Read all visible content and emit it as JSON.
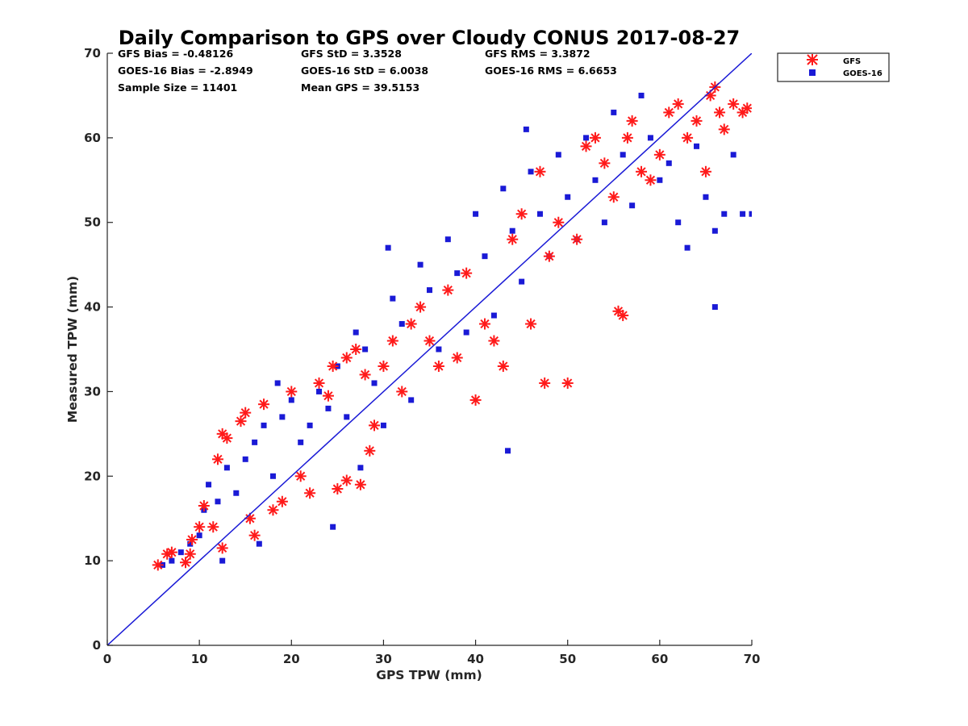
{
  "chart_data": {
    "type": "scatter",
    "title": "Daily Comparison to GPS over Cloudy CONUS 2017-08-27",
    "xlabel": "GPS TPW (mm)",
    "ylabel": "Measured TPW (mm)",
    "xlim": [
      0,
      70
    ],
    "ylim": [
      0,
      70
    ],
    "x_ticks": [
      0,
      10,
      20,
      30,
      40,
      50,
      60,
      70
    ],
    "y_ticks": [
      0,
      10,
      20,
      30,
      40,
      50,
      60,
      70
    ],
    "grid": false,
    "legend_position": "outside-top-right",
    "stats": [
      [
        "GFS Bias = -0.48126",
        "GFS StD = 3.3528",
        "GFS RMS = 3.3872"
      ],
      [
        "GOES-16 Bias = -2.8949",
        "GOES-16 StD = 6.0038",
        "GOES-16 RMS = 6.6653"
      ],
      [
        "Sample Size = 11401",
        "Mean GPS = 39.5153",
        ""
      ]
    ],
    "reference_line": {
      "x": [
        0,
        70
      ],
      "y": [
        0,
        70
      ],
      "color": "#1a1ad6"
    },
    "series": [
      {
        "name": "GFS",
        "marker": "asterisk",
        "color": "#ff1a1a",
        "points": [
          [
            5.5,
            9.5
          ],
          [
            6.5,
            10.8
          ],
          [
            7,
            11
          ],
          [
            8.5,
            9.8
          ],
          [
            9,
            10.8
          ],
          [
            9.2,
            12.5
          ],
          [
            10,
            14
          ],
          [
            10.5,
            16.5
          ],
          [
            11.5,
            14
          ],
          [
            12,
            22
          ],
          [
            12.5,
            25
          ],
          [
            12.5,
            11.5
          ],
          [
            13,
            24.5
          ],
          [
            14.5,
            26.5
          ],
          [
            15,
            27.5
          ],
          [
            15.5,
            15
          ],
          [
            16,
            13
          ],
          [
            17,
            28.5
          ],
          [
            18,
            16
          ],
          [
            19,
            17
          ],
          [
            20,
            30
          ],
          [
            21,
            20
          ],
          [
            22,
            18
          ],
          [
            23,
            31
          ],
          [
            24,
            29.5
          ],
          [
            24.5,
            33
          ],
          [
            25,
            18.5
          ],
          [
            26,
            19.5
          ],
          [
            26,
            34
          ],
          [
            27,
            35
          ],
          [
            27.5,
            19
          ],
          [
            28,
            32
          ],
          [
            28.5,
            23
          ],
          [
            29,
            26
          ],
          [
            30,
            33
          ],
          [
            31,
            36
          ],
          [
            32,
            30
          ],
          [
            33,
            38
          ],
          [
            34,
            40
          ],
          [
            35,
            36
          ],
          [
            36,
            33
          ],
          [
            37,
            42
          ],
          [
            38,
            34
          ],
          [
            39,
            44
          ],
          [
            40,
            29
          ],
          [
            41,
            38
          ],
          [
            42,
            36
          ],
          [
            43,
            33
          ],
          [
            44,
            48
          ],
          [
            45,
            51
          ],
          [
            46,
            38
          ],
          [
            47,
            56
          ],
          [
            47.5,
            31
          ],
          [
            48,
            46
          ],
          [
            49,
            50
          ],
          [
            50,
            31
          ],
          [
            51,
            48
          ],
          [
            52,
            59
          ],
          [
            53,
            60
          ],
          [
            54,
            57
          ],
          [
            55,
            53
          ],
          [
            55.5,
            39.5
          ],
          [
            56,
            39
          ],
          [
            56.5,
            60
          ],
          [
            57,
            62
          ],
          [
            58,
            56
          ],
          [
            59,
            55
          ],
          [
            60,
            58
          ],
          [
            61,
            63
          ],
          [
            62,
            64
          ],
          [
            63,
            60
          ],
          [
            64,
            62
          ],
          [
            65,
            56
          ],
          [
            65.5,
            65
          ],
          [
            66,
            66
          ],
          [
            66.5,
            63
          ],
          [
            67,
            61
          ],
          [
            68,
            64
          ],
          [
            69,
            63
          ],
          [
            69.5,
            63.5
          ]
        ]
      },
      {
        "name": "GOES-16",
        "marker": "square",
        "color": "#1a1ad6",
        "points": [
          [
            6,
            9.5
          ],
          [
            7,
            10
          ],
          [
            8,
            11
          ],
          [
            9,
            12
          ],
          [
            10,
            13
          ],
          [
            10.5,
            16
          ],
          [
            11,
            19
          ],
          [
            12,
            17
          ],
          [
            12.5,
            10
          ],
          [
            13,
            21
          ],
          [
            14,
            18
          ],
          [
            15,
            22
          ],
          [
            16,
            24
          ],
          [
            16.5,
            12
          ],
          [
            17,
            26
          ],
          [
            18,
            20
          ],
          [
            18.5,
            31
          ],
          [
            19,
            27
          ],
          [
            20,
            29
          ],
          [
            21,
            24
          ],
          [
            22,
            26
          ],
          [
            23,
            30
          ],
          [
            24,
            28
          ],
          [
            24.5,
            14
          ],
          [
            25,
            33
          ],
          [
            26,
            27
          ],
          [
            27,
            37
          ],
          [
            27.5,
            21
          ],
          [
            28,
            35
          ],
          [
            29,
            31
          ],
          [
            30,
            26
          ],
          [
            30.5,
            47
          ],
          [
            31,
            41
          ],
          [
            32,
            38
          ],
          [
            33,
            29
          ],
          [
            34,
            45
          ],
          [
            35,
            42
          ],
          [
            36,
            35
          ],
          [
            37,
            48
          ],
          [
            38,
            44
          ],
          [
            39,
            37
          ],
          [
            40,
            51
          ],
          [
            41,
            46
          ],
          [
            42,
            39
          ],
          [
            43,
            54
          ],
          [
            43.5,
            23
          ],
          [
            44,
            49
          ],
          [
            45,
            43
          ],
          [
            45.5,
            61
          ],
          [
            46,
            56
          ],
          [
            47,
            51
          ],
          [
            48,
            46
          ],
          [
            49,
            58
          ],
          [
            50,
            53
          ],
          [
            51,
            48
          ],
          [
            52,
            60
          ],
          [
            53,
            55
          ],
          [
            54,
            50
          ],
          [
            55,
            63
          ],
          [
            56,
            58
          ],
          [
            57,
            52
          ],
          [
            58,
            65
          ],
          [
            59,
            60
          ],
          [
            60,
            55
          ],
          [
            61,
            57
          ],
          [
            62,
            50
          ],
          [
            63,
            47
          ],
          [
            64,
            59
          ],
          [
            65,
            53
          ],
          [
            66,
            40
          ],
          [
            66,
            49
          ],
          [
            67,
            51
          ],
          [
            68,
            58
          ],
          [
            69,
            51
          ],
          [
            70,
            51
          ]
        ]
      }
    ]
  }
}
